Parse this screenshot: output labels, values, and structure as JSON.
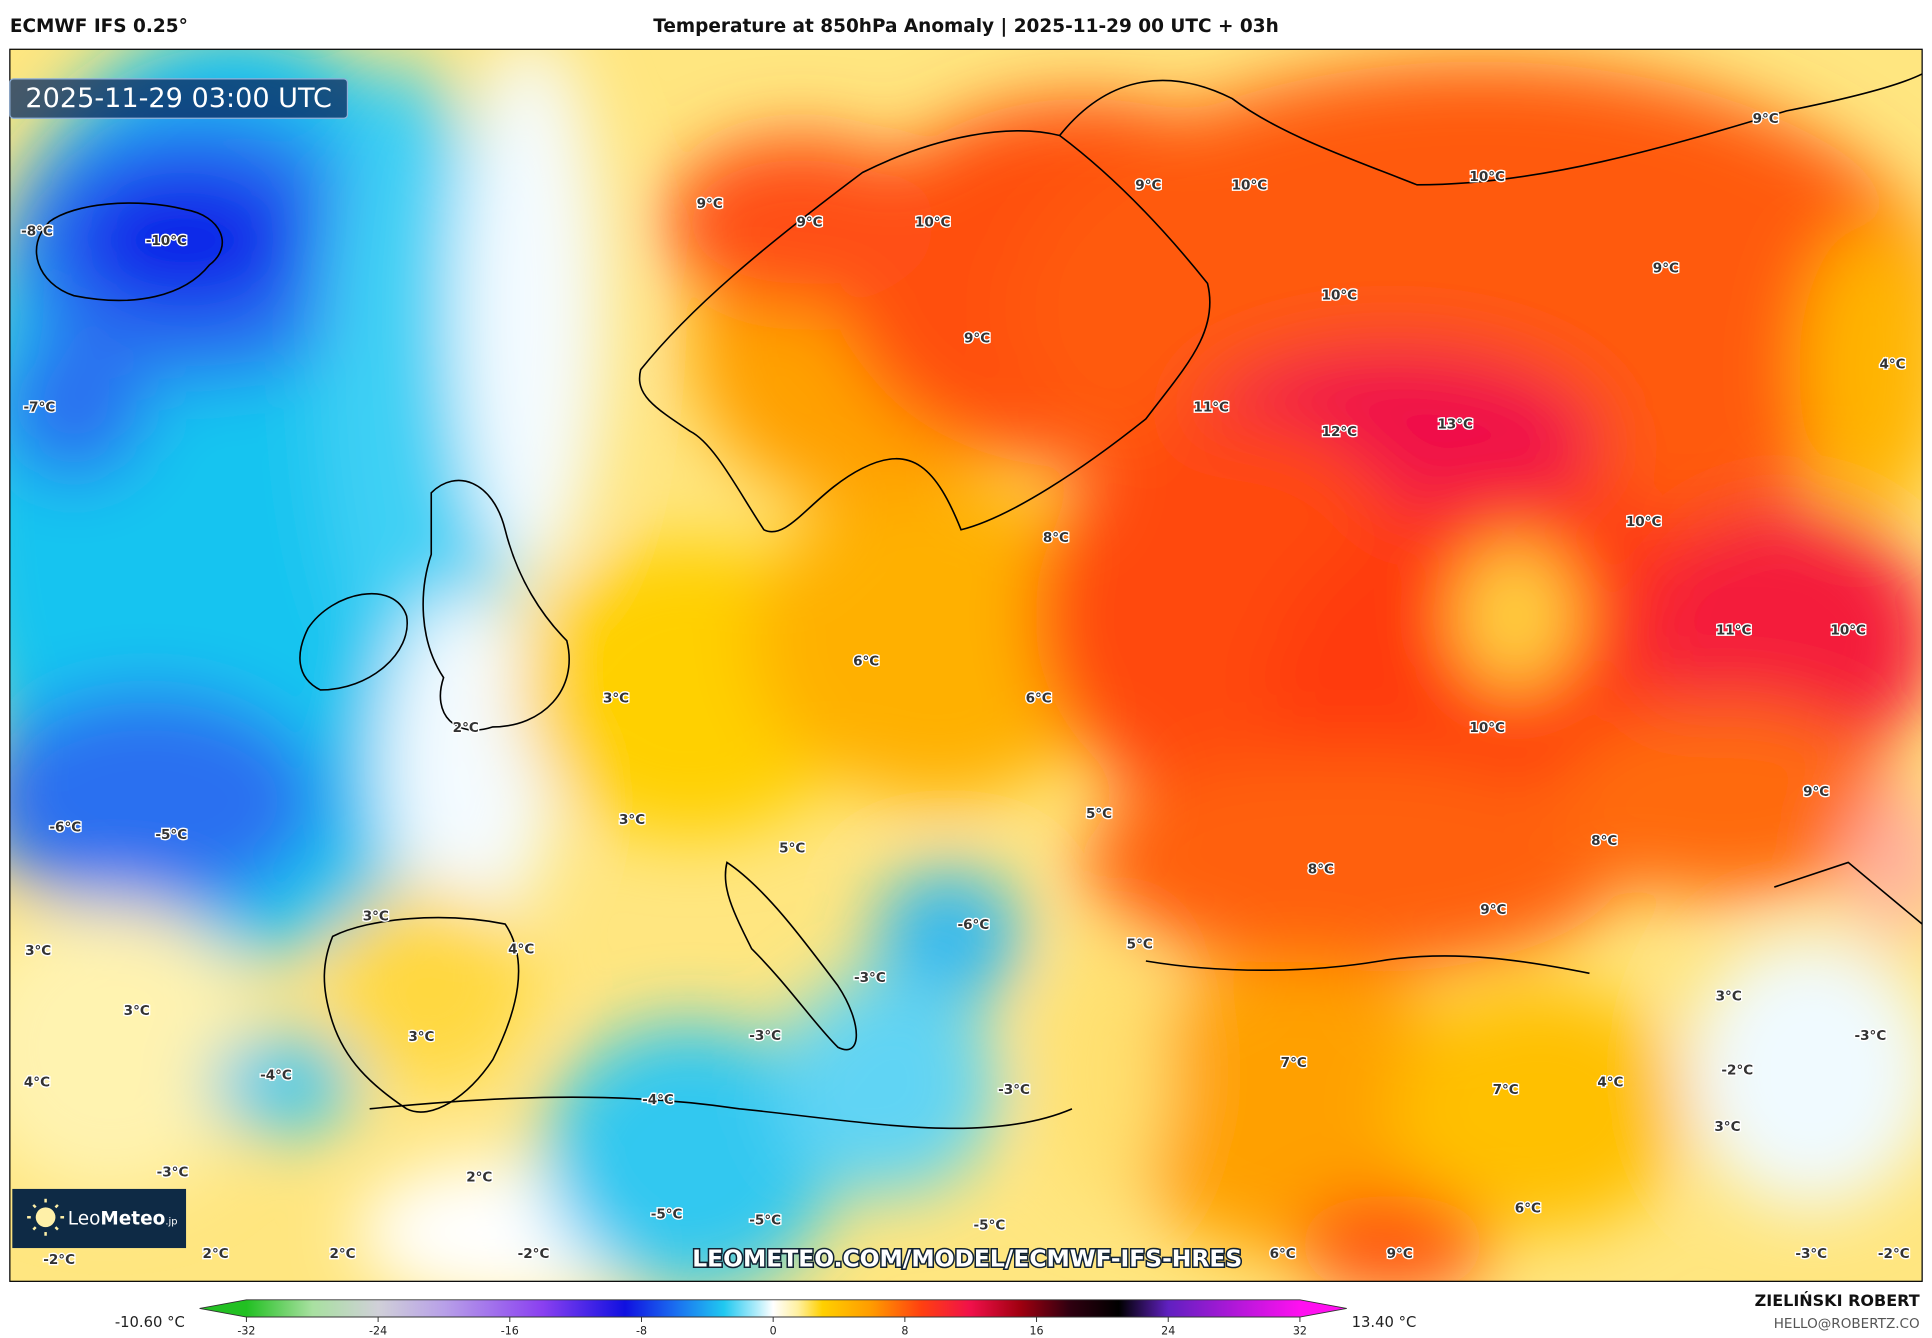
{
  "header": {
    "model": "ECMWF IFS 0.25°",
    "title": "Temperature at 850hPa Anomaly | 2025-11-29 00 UTC + 03h"
  },
  "map": {
    "valid_time": "2025-11-29 03:00 UTC",
    "watermark": "LEOMETEO.COM/MODEL/ECMWF-IFS-HRES",
    "logo": {
      "text_light": "Leo",
      "text_bold": "Meteo",
      "suffix": ".jp",
      "icon": "sun-icon"
    },
    "labels": [
      "9°C",
      "9°C",
      "10°C",
      "9°C",
      "10°C",
      "10°C",
      "9°C",
      "-10°C",
      "-8°C",
      "9°C",
      "10°C",
      "9°C",
      "4°C",
      "-7°C",
      "11°C",
      "12°C",
      "13°C",
      "8°C",
      "10°C",
      "6°C",
      "11°C",
      "10°C",
      "6°C",
      "3°C",
      "2°C",
      "10°C",
      "3°C",
      "5°C",
      "5°C",
      "9°C",
      "-6°C",
      "-5°C",
      "8°C",
      "8°C",
      "3°C",
      "-6°C",
      "9°C",
      "3°C",
      "4°C",
      "5°C",
      "-3°C",
      "3°C",
      "3°C",
      "-3°C",
      "3°C",
      "-3°C",
      "7°C",
      "-2°C",
      "-4°C",
      "4°C",
      "7°C",
      "4°C",
      "-3°C",
      "-4°C",
      "3°C",
      "2°C",
      "-3°C",
      "6°C",
      "-5°C",
      "-5°C",
      "-5°C",
      "-2°C",
      "2°C",
      "2°C",
      "-2°C",
      "6°C",
      "9°C",
      "-3°C",
      "-2°C"
    ]
  },
  "colorbar": {
    "min_label": "-10.60 °C",
    "max_label": "13.40 °C",
    "ticks": [
      "-32",
      "-24",
      "-16",
      "-8",
      "0",
      "8",
      "16",
      "24",
      "32"
    ],
    "range": [
      -32,
      32
    ],
    "stops": [
      {
        "v": -32,
        "c": "#22c022"
      },
      {
        "v": -28,
        "c": "#a8e0a0"
      },
      {
        "v": -24,
        "c": "#d0d0d8"
      },
      {
        "v": -20,
        "c": "#b8a0e8"
      },
      {
        "v": -14,
        "c": "#8a40f0"
      },
      {
        "v": -9,
        "c": "#1010e0"
      },
      {
        "v": -6,
        "c": "#1a6cf0"
      },
      {
        "v": -3,
        "c": "#20c8f0"
      },
      {
        "v": -1,
        "c": "#b0ecfa"
      },
      {
        "v": 0,
        "c": "#ffffff"
      },
      {
        "v": 1.5,
        "c": "#fff0a0"
      },
      {
        "v": 3,
        "c": "#ffd000"
      },
      {
        "v": 6,
        "c": "#ff9a00"
      },
      {
        "v": 9,
        "c": "#ff4010"
      },
      {
        "v": 12,
        "c": "#f0104a"
      },
      {
        "v": 15,
        "c": "#a00010"
      },
      {
        "v": 18,
        "c": "#300010"
      },
      {
        "v": 21,
        "c": "#000000"
      },
      {
        "v": 24,
        "c": "#6020c0"
      },
      {
        "v": 32,
        "c": "#ff10f0"
      }
    ]
  },
  "credits": {
    "author": "ZIELIŃSKI ROBERT",
    "email": "HELLO@ROBERTZ.CO"
  }
}
